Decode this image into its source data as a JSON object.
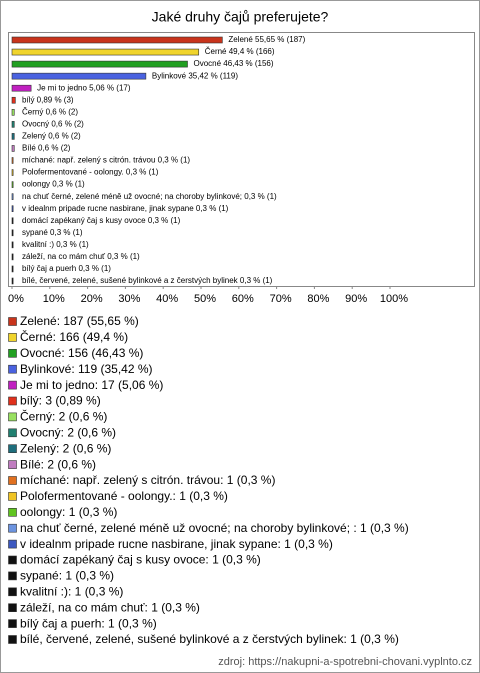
{
  "chart_data": {
    "type": "bar",
    "orientation": "horizontal",
    "title": "Jaké druhy čajů preferujete?",
    "values": [
      55.65,
      49.4,
      46.43,
      35.42,
      5.06,
      0.89,
      0.6,
      0.6,
      0.6,
      0.6,
      0.3,
      0.3,
      0.3,
      0.3,
      0.3,
      0.3,
      0.3,
      0.3,
      0.3,
      0.3,
      0.3
    ],
    "value_labels": [
      "Zelené 55,65 % (187)",
      "Černé 49,4 % (166)",
      "Ovocné 46,43 % (156)",
      "Bylinkové 35,42 % (119)",
      "Je mi to jedno 5,06 % (17)",
      "bílý 0,89 % (3)",
      "Černý 0,6 % (2)",
      "Ovocný 0,6 % (2)",
      "Zelený 0,6 % (2)",
      "Bílé 0,6 % (2)",
      "míchané: např. zelený s citrón. trávou 0,3 % (1)",
      "Polofermentované - oolongy. 0,3 % (1)",
      "oolongy 0,3 % (1)",
      "na chuť černé, zelené méně už ovocné; na choroby bylinkové;  0,3 % (1)",
      "v idealnm pripade rucne nasbirane, jinak sypane 0,3 % (1)",
      "domácí zapékaný čaj s kusy ovoce 0,3 % (1)",
      "sypané 0,3 % (1)",
      "kvalitní :) 0,3 % (1)",
      "záleží, na co mám chuť 0,3 % (1)",
      "bílý čaj a puerh 0,3 % (1)",
      "bílé, červené, zelené, sušené bylinkové a z čerstvých bylinek 0,3 % (1)"
    ],
    "legend_labels": [
      "Zelené: 187 (55,65 %)",
      "Černé: 166 (49,4 %)",
      "Ovocné: 156 (46,43 %)",
      "Bylinkové: 119 (35,42 %)",
      "Je mi to jedno: 17 (5,06 %)",
      "bílý: 3 (0,89 %)",
      "Černý: 2 (0,6 %)",
      "Ovocný: 2 (0,6 %)",
      "Zelený: 2 (0,6 %)",
      "Bílé: 2 (0,6 %)",
      "míchané: např. zelený s citrón. trávou: 1 (0,3 %)",
      "Polofermentované - oolongy.: 1 (0,3 %)",
      "oolongy: 1 (0,3 %)",
      "na chuť černé, zelené méně už ovocné; na choroby bylinkové; : 1 (0,3 %)",
      "v idealnm pripade rucne nasbirane, jinak sypane: 1 (0,3 %)",
      "domácí zapékaný čaj s kusy ovoce: 1 (0,3 %)",
      "sypané: 1 (0,3 %)",
      "kvalitní :): 1 (0,3 %)",
      "záleží, na co mám chuť: 1 (0,3 %)",
      "bílý čaj a puerh: 1 (0,3 %)",
      "bílé, červené, zelené, sušené bylinkové a z čerstvých bylinek: 1 (0,3 %)"
    ],
    "colors": [
      "#c8341c",
      "#f0d42c",
      "#22a022",
      "#4a62e0",
      "#c020c0",
      "#e0301c",
      "#98e060",
      "#208070",
      "#1e6e7c",
      "#c07cc0",
      "#e07020",
      "#f0c424",
      "#60c420",
      "#6c94e0",
      "#3c58c0",
      "#111111",
      "#111111",
      "#111111",
      "#111111",
      "#111111",
      "#111111"
    ],
    "xlim": [
      0,
      100
    ],
    "xticks": [
      {
        "value": 0,
        "label": "0%"
      },
      {
        "value": 10,
        "label": "10%"
      },
      {
        "value": 20,
        "label": "20%"
      },
      {
        "value": 30,
        "label": "30%"
      },
      {
        "value": 40,
        "label": "40%"
      },
      {
        "value": 50,
        "label": "50%"
      },
      {
        "value": 60,
        "label": "60%"
      },
      {
        "value": 70,
        "label": "70%"
      },
      {
        "value": 80,
        "label": "80%"
      },
      {
        "value": 90,
        "label": "90%"
      },
      {
        "value": 100,
        "label": "100%"
      }
    ],
    "source": "zdroj: https://nakupni-a-spotrebni-chovani.vyplnto.cz"
  }
}
